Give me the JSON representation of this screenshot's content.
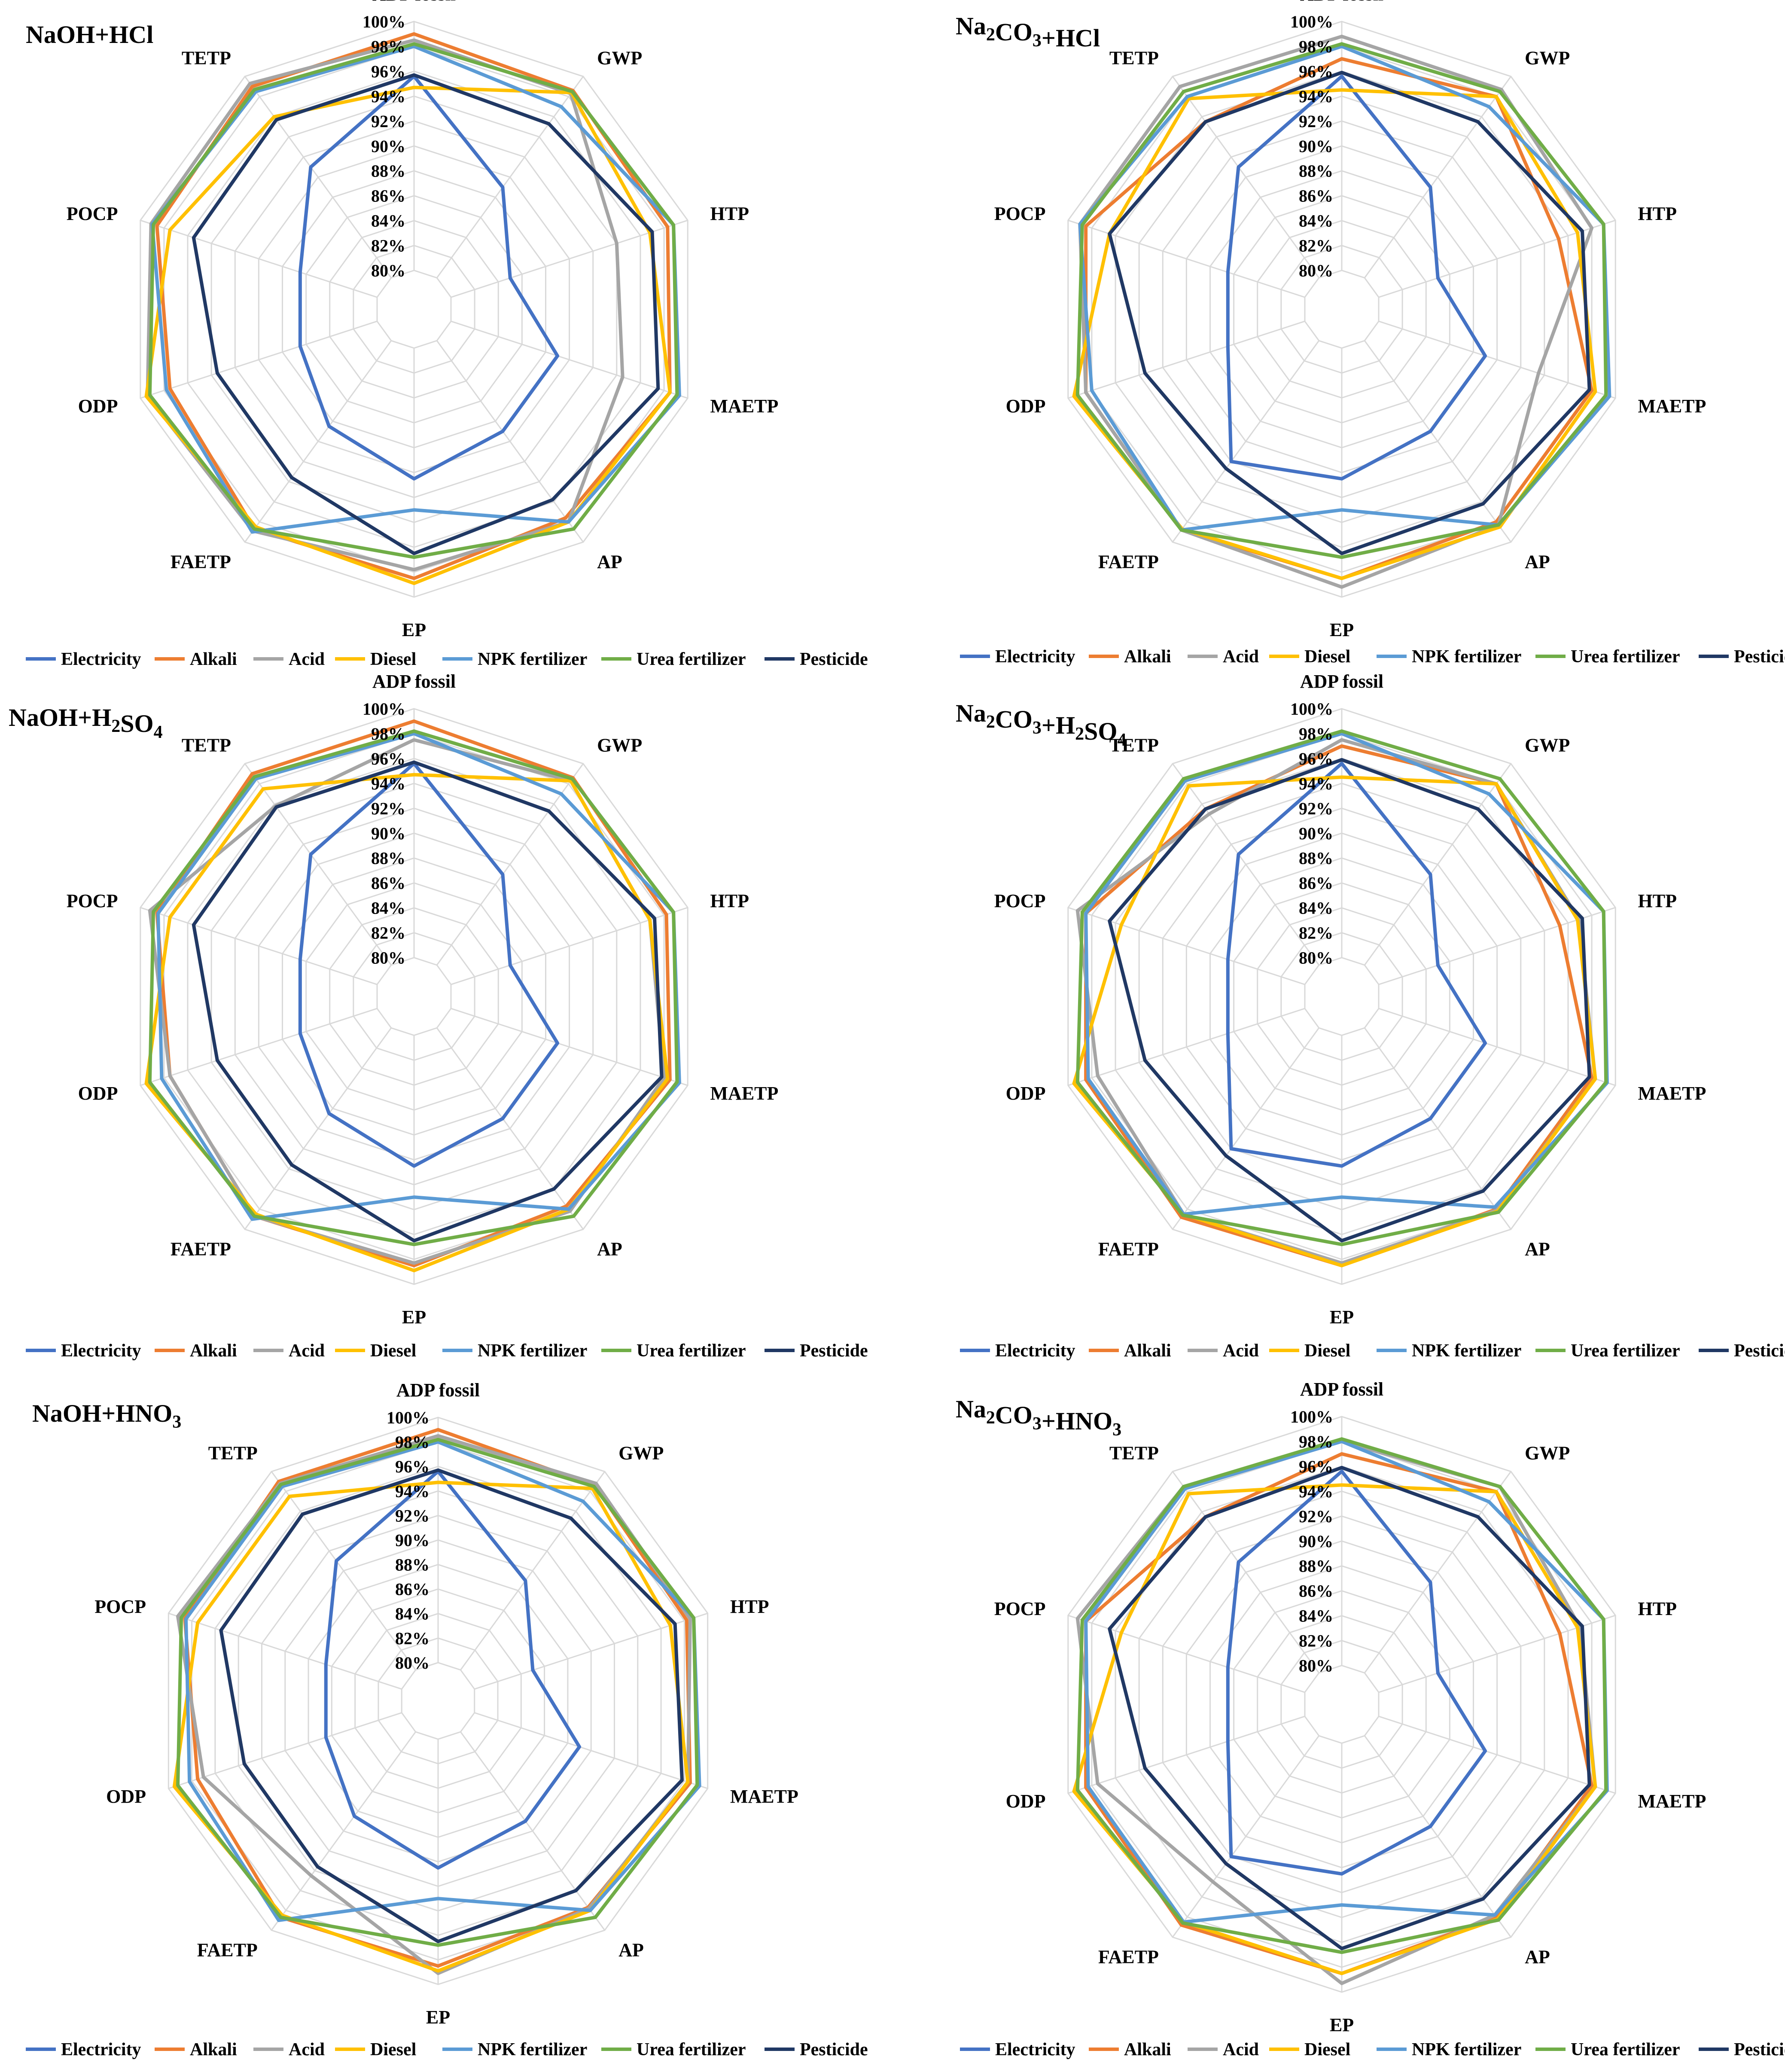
{
  "legend": {
    "series": [
      "Electricity",
      "Alkali",
      "Acid",
      "Diesel",
      "NPK fertilizer",
      "Urea fertilizer",
      "Pesticide"
    ],
    "colors": [
      "#4472c4",
      "#ed7d31",
      "#a5a5a5",
      "#ffc000",
      "#5b9bd5",
      "#70ad47",
      "#203864"
    ]
  },
  "chart_data": [
    {
      "type": "radar",
      "title": "NaOH+HCl",
      "axes": [
        "ADP fossil",
        "GWP",
        "HTP",
        "MAETP",
        "AP",
        "EP",
        "FAETP",
        "ODP",
        "POCP",
        "TETP"
      ],
      "ticks": [
        "80%",
        "82%",
        "84%",
        "86%",
        "88%",
        "90%",
        "92%",
        "94%",
        "96%",
        "98%",
        "100%"
      ],
      "range": [
        80,
        100
      ],
      "series": [
        {
          "name": "Electricity",
          "values": [
            95.6,
            89.0,
            85.0,
            89.0,
            89.0,
            90.5,
            88.5,
            86.5,
            86.5,
            91.0
          ]
        },
        {
          "name": "Alkali",
          "values": [
            99.0,
            98.6,
            98.3,
            98.5,
            97.6,
            98.5,
            98.7,
            97.5,
            98.6,
            99.0
          ]
        },
        {
          "name": "Acid",
          "values": [
            98.5,
            98.3,
            94.0,
            94.5,
            98.0,
            97.8,
            98.9,
            99.4,
            99.1,
            99.3
          ]
        },
        {
          "name": "Diesel",
          "values": [
            94.7,
            98.4,
            96.8,
            98.5,
            98.0,
            98.9,
            98.5,
            99.5,
            97.5,
            96.0
          ]
        },
        {
          "name": "NPK fertilizer",
          "values": [
            98.0,
            97.0,
            98.8,
            99.3,
            98.0,
            93.0,
            99.0,
            97.8,
            99.0,
            98.5
          ]
        },
        {
          "name": "Urea fertilizer",
          "values": [
            98.2,
            98.5,
            98.8,
            99.1,
            98.7,
            96.8,
            98.7,
            99.2,
            98.9,
            98.7
          ]
        },
        {
          "name": "Pesticide",
          "values": [
            95.7,
            95.3,
            97.0,
            97.5,
            95.8,
            96.5,
            93.6,
            93.5,
            95.5,
            95.7
          ]
        }
      ]
    },
    {
      "type": "radar",
      "title": "Na2CO3+HCl",
      "axes": [
        "ADP fossil",
        "GWP",
        "HTP",
        "MAETP",
        "AP",
        "EP",
        "FAETP",
        "ODP",
        "POCP",
        "TETP"
      ],
      "ticks": [
        "80%",
        "82%",
        "84%",
        "86%",
        "88%",
        "90%",
        "92%",
        "94%",
        "96%",
        "98%",
        "100%"
      ],
      "range": [
        80,
        100
      ],
      "series": [
        {
          "name": "Electricity",
          "values": [
            95.6,
            89.0,
            85.0,
            89.0,
            89.0,
            90.5,
            92.0,
            86.5,
            86.5,
            91.0
          ]
        },
        {
          "name": "Alkali",
          "values": [
            97.0,
            98.0,
            95.2,
            98.0,
            98.0,
            98.5,
            98.8,
            98.5,
            98.5,
            95.5
          ]
        },
        {
          "name": "Acid",
          "values": [
            98.8,
            98.7,
            98.0,
            93.5,
            98.3,
            99.2,
            98.8,
            98.5,
            99.0,
            99.0
          ]
        },
        {
          "name": "Diesel",
          "values": [
            94.5,
            98.0,
            96.8,
            98.3,
            98.5,
            98.5,
            98.7,
            99.5,
            96.5,
            97.8
          ]
        },
        {
          "name": "NPK fertilizer",
          "values": [
            98.0,
            97.0,
            99.0,
            99.5,
            98.3,
            93.0,
            98.8,
            98.0,
            99.0,
            98.0
          ]
        },
        {
          "name": "Urea fertilizer",
          "values": [
            98.2,
            98.5,
            99.0,
            99.2,
            98.3,
            96.8,
            98.8,
            99.2,
            98.8,
            98.5
          ]
        },
        {
          "name": "Pesticide",
          "values": [
            95.9,
            95.5,
            97.2,
            97.8,
            96.2,
            96.5,
            92.7,
            93.5,
            96.5,
            95.5
          ]
        }
      ]
    },
    {
      "type": "radar",
      "title": "NaOH+H2SO4",
      "axes": [
        "ADP fossil",
        "GWP",
        "HTP",
        "MAETP",
        "AP",
        "EP",
        "FAETP",
        "ODP",
        "POCP",
        "TETP"
      ],
      "ticks": [
        "80%",
        "82%",
        "84%",
        "86%",
        "88%",
        "90%",
        "92%",
        "94%",
        "96%",
        "98%",
        "100%"
      ],
      "range": [
        80,
        100
      ],
      "series": [
        {
          "name": "Electricity",
          "values": [
            95.6,
            89.0,
            85.0,
            89.0,
            89.0,
            90.5,
            88.5,
            86.5,
            86.5,
            91.0
          ]
        },
        {
          "name": "Alkali",
          "values": [
            99.0,
            98.6,
            98.2,
            98.5,
            97.7,
            98.5,
            98.7,
            97.5,
            98.6,
            99.0
          ]
        },
        {
          "name": "Acid",
          "values": [
            97.5,
            98.3,
            96.8,
            98.0,
            98.2,
            98.3,
            98.7,
            97.5,
            99.2,
            95.8
          ]
        },
        {
          "name": "Diesel",
          "values": [
            94.7,
            98.3,
            96.8,
            98.3,
            98.0,
            98.9,
            98.5,
            99.5,
            97.5,
            97.5
          ]
        },
        {
          "name": "NPK fertilizer",
          "values": [
            98.0,
            97.0,
            98.8,
            99.3,
            98.0,
            93.0,
            99.0,
            98.2,
            98.5,
            98.5
          ]
        },
        {
          "name": "Urea fertilizer",
          "values": [
            98.2,
            98.5,
            98.8,
            99.1,
            98.7,
            96.8,
            98.7,
            99.2,
            98.9,
            98.7
          ]
        },
        {
          "name": "Pesticide",
          "values": [
            95.7,
            95.3,
            97.2,
            97.8,
            96.0,
            96.5,
            93.6,
            93.5,
            95.5,
            95.7
          ]
        }
      ]
    },
    {
      "type": "radar",
      "title": "Na2CO3+H2SO4",
      "axes": [
        "ADP fossil",
        "GWP",
        "HTP",
        "MAETP",
        "AP",
        "EP",
        "FAETP",
        "ODP",
        "POCP",
        "TETP"
      ],
      "ticks": [
        "80%",
        "82%",
        "84%",
        "86%",
        "88%",
        "90%",
        "92%",
        "94%",
        "96%",
        "98%",
        "100%"
      ],
      "range": [
        80,
        100
      ],
      "series": [
        {
          "name": "Electricity",
          "values": [
            95.6,
            89.0,
            85.0,
            89.0,
            89.0,
            90.5,
            92.0,
            86.5,
            86.5,
            91.0
          ]
        },
        {
          "name": "Alkali",
          "values": [
            97.0,
            98.0,
            95.3,
            98.0,
            98.0,
            98.5,
            98.8,
            98.5,
            98.5,
            95.5
          ]
        },
        {
          "name": "Acid",
          "values": [
            97.5,
            98.0,
            96.9,
            98.3,
            98.1,
            98.3,
            98.5,
            97.5,
            99.2,
            95.0
          ]
        },
        {
          "name": "Diesel",
          "values": [
            94.5,
            98.0,
            96.8,
            98.3,
            98.2,
            98.5,
            98.5,
            99.5,
            95.5,
            97.8
          ]
        },
        {
          "name": "NPK fertilizer",
          "values": [
            98.0,
            97.0,
            99.0,
            99.3,
            97.8,
            93.0,
            98.5,
            98.3,
            98.5,
            98.3
          ]
        },
        {
          "name": "Urea fertilizer",
          "values": [
            98.2,
            98.5,
            99.0,
            99.2,
            98.3,
            96.8,
            98.6,
            99.2,
            98.8,
            98.5
          ]
        },
        {
          "name": "Pesticide",
          "values": [
            95.9,
            95.5,
            97.2,
            97.8,
            96.2,
            96.5,
            92.7,
            93.5,
            96.5,
            95.5
          ]
        }
      ]
    },
    {
      "type": "radar",
      "title": "NaOH+HNO3",
      "axes": [
        "ADP fossil",
        "GWP",
        "HTP",
        "MAETP",
        "AP",
        "EP",
        "FAETP",
        "ODP",
        "POCP",
        "TETP"
      ],
      "ticks": [
        "80%",
        "82%",
        "84%",
        "86%",
        "88%",
        "90%",
        "92%",
        "94%",
        "96%",
        "98%",
        "100%"
      ],
      "range": [
        80,
        100
      ],
      "series": [
        {
          "name": "Electricity",
          "values": [
            95.6,
            89.0,
            85.0,
            89.0,
            89.0,
            90.5,
            88.5,
            86.5,
            86.5,
            91.0
          ]
        },
        {
          "name": "Alkali",
          "values": [
            99.0,
            98.6,
            98.2,
            98.5,
            97.7,
            98.5,
            98.7,
            97.5,
            98.6,
            99.0
          ]
        },
        {
          "name": "Acid",
          "values": [
            98.5,
            98.8,
            98.5,
            98.3,
            97.8,
            99.1,
            94.5,
            97.0,
            99.2,
            98.8
          ]
        },
        {
          "name": "Diesel",
          "values": [
            94.7,
            98.3,
            96.8,
            98.3,
            98.0,
            98.9,
            98.5,
            99.5,
            97.5,
            97.5
          ]
        },
        {
          "name": "NPK fertilizer",
          "values": [
            98.0,
            97.0,
            98.8,
            99.3,
            98.0,
            93.0,
            99.0,
            98.2,
            98.5,
            98.5
          ]
        },
        {
          "name": "Urea fertilizer",
          "values": [
            98.2,
            98.5,
            98.8,
            99.1,
            98.7,
            96.8,
            98.7,
            99.2,
            98.9,
            98.7
          ]
        },
        {
          "name": "Pesticide",
          "values": [
            95.7,
            95.3,
            97.2,
            97.8,
            96.0,
            96.5,
            93.6,
            93.5,
            95.5,
            95.7
          ]
        }
      ]
    },
    {
      "type": "radar",
      "title": "Na2CO3+HNO3",
      "axes": [
        "ADP fossil",
        "GWP",
        "HTP",
        "MAETP",
        "AP",
        "EP",
        "FAETP",
        "ODP",
        "POCP",
        "TETP"
      ],
      "ticks": [
        "80%",
        "82%",
        "84%",
        "86%",
        "88%",
        "90%",
        "92%",
        "94%",
        "96%",
        "98%",
        "100%"
      ],
      "range": [
        80,
        100
      ],
      "series": [
        {
          "name": "Electricity",
          "values": [
            95.6,
            89.0,
            85.0,
            89.0,
            89.0,
            90.5,
            92.0,
            86.5,
            86.5,
            91.0
          ]
        },
        {
          "name": "Alkali",
          "values": [
            97.0,
            98.0,
            95.3,
            98.0,
            98.0,
            98.5,
            98.8,
            98.5,
            98.5,
            95.5
          ]
        },
        {
          "name": "Acid",
          "values": [
            98.0,
            98.5,
            97.0,
            98.3,
            97.8,
            99.3,
            94.5,
            97.5,
            99.2,
            98.5
          ]
        },
        {
          "name": "Diesel",
          "values": [
            94.5,
            98.0,
            96.8,
            98.3,
            98.2,
            98.5,
            98.5,
            99.5,
            95.5,
            97.8
          ]
        },
        {
          "name": "NPK fertilizer",
          "values": [
            98.0,
            97.0,
            99.0,
            99.3,
            97.8,
            93.0,
            98.5,
            98.3,
            98.5,
            98.3
          ]
        },
        {
          "name": "Urea fertilizer",
          "values": [
            98.2,
            98.5,
            99.0,
            99.2,
            98.3,
            96.8,
            98.6,
            99.2,
            98.8,
            98.5
          ]
        },
        {
          "name": "Pesticide",
          "values": [
            95.9,
            95.5,
            97.2,
            97.8,
            96.2,
            96.5,
            92.7,
            93.5,
            96.5,
            95.5
          ]
        }
      ]
    }
  ]
}
